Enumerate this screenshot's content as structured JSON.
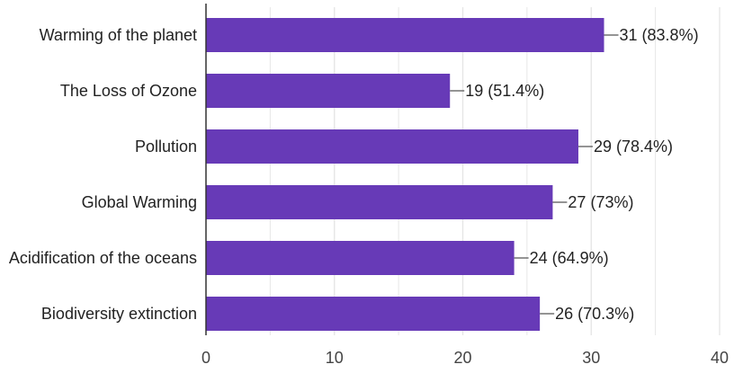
{
  "chart_data": {
    "type": "bar",
    "orientation": "horizontal",
    "categories": [
      "Warming of the planet",
      "The Loss of Ozone",
      "Pollution",
      "Global Warming",
      "Acidification of the oceans",
      "Biodiversity extinction"
    ],
    "values": [
      31,
      19,
      29,
      27,
      24,
      26
    ],
    "data_labels": [
      "31 (83.8%)",
      "19 (51.4%)",
      "29 (78.4%)",
      "27 (73%)",
      "24 (64.9%)",
      "26 (70.3%)"
    ],
    "xlim": [
      0,
      40
    ],
    "x_ticks": [
      0,
      10,
      20,
      30,
      40
    ],
    "x_tick_labels": [
      "0",
      "10",
      "20",
      "30",
      "40"
    ],
    "title": "",
    "xlabel": "",
    "ylabel": "",
    "grid": true,
    "legend": "none",
    "colors": {
      "bar": "#673ab7",
      "grid": "#e6e6e6",
      "axis": "#333333",
      "text": "#222222",
      "tick_text": "#444444",
      "leader": "#555555"
    }
  }
}
